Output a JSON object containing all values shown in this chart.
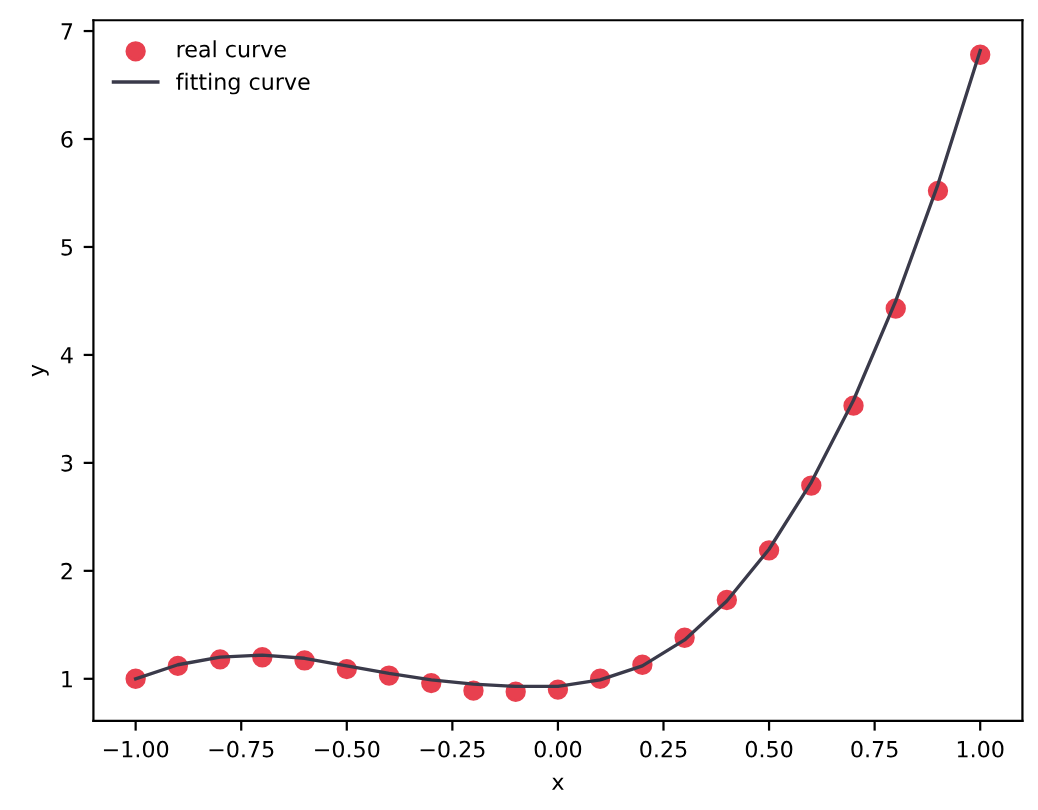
{
  "chart_data": {
    "type": "scatter",
    "xlabel": "x",
    "ylabel": "y",
    "xlim": [
      -1.1,
      1.1
    ],
    "ylim": [
      0.61,
      7.1
    ],
    "xticks": [
      {
        "value": -1,
        "label": "−1.00"
      },
      {
        "value": -0.75,
        "label": "−0.75"
      },
      {
        "value": -0.5,
        "label": "−0.50"
      },
      {
        "value": -0.25,
        "label": "−0.25"
      },
      {
        "value": 0,
        "label": "0.00"
      },
      {
        "value": 0.25,
        "label": "0.25"
      },
      {
        "value": 0.5,
        "label": "0.50"
      },
      {
        "value": 0.75,
        "label": "0.75"
      },
      {
        "value": 1,
        "label": "1.00"
      }
    ],
    "yticks": [
      1,
      2,
      3,
      4,
      5,
      6,
      7
    ],
    "grid": false,
    "legend": "top left",
    "series": [
      {
        "name": "real curve",
        "marker": "circle",
        "color": "#e8404f",
        "x": [
          -1.0,
          -0.9,
          -0.8,
          -0.7,
          -0.6,
          -0.5,
          -0.4,
          -0.3,
          -0.2,
          -0.1,
          0.0,
          0.1,
          0.2,
          0.3,
          0.4,
          0.5,
          0.6,
          0.7,
          0.8,
          0.9,
          1.0
        ],
        "values": [
          1.0,
          1.12,
          1.18,
          1.2,
          1.17,
          1.09,
          1.03,
          0.96,
          0.89,
          0.88,
          0.9,
          1.0,
          1.13,
          1.38,
          1.73,
          2.19,
          2.79,
          3.53,
          4.43,
          5.52,
          6.78
        ]
      },
      {
        "name": "fitting curve",
        "type": "line",
        "line_style": "solid",
        "color": "#3a3a4a",
        "x": [
          -1.0,
          -0.9,
          -0.8,
          -0.7,
          -0.6,
          -0.5,
          -0.4,
          -0.3,
          -0.2,
          -0.1,
          0.0,
          0.1,
          0.2,
          0.3,
          0.4,
          0.5,
          0.6,
          0.7,
          0.8,
          0.9,
          1.0
        ],
        "values": [
          1.0,
          1.13,
          1.2,
          1.22,
          1.19,
          1.12,
          1.05,
          0.99,
          0.95,
          0.93,
          0.93,
          0.99,
          1.12,
          1.36,
          1.72,
          2.2,
          2.82,
          3.58,
          4.5,
          5.58,
          6.82
        ]
      }
    ]
  }
}
